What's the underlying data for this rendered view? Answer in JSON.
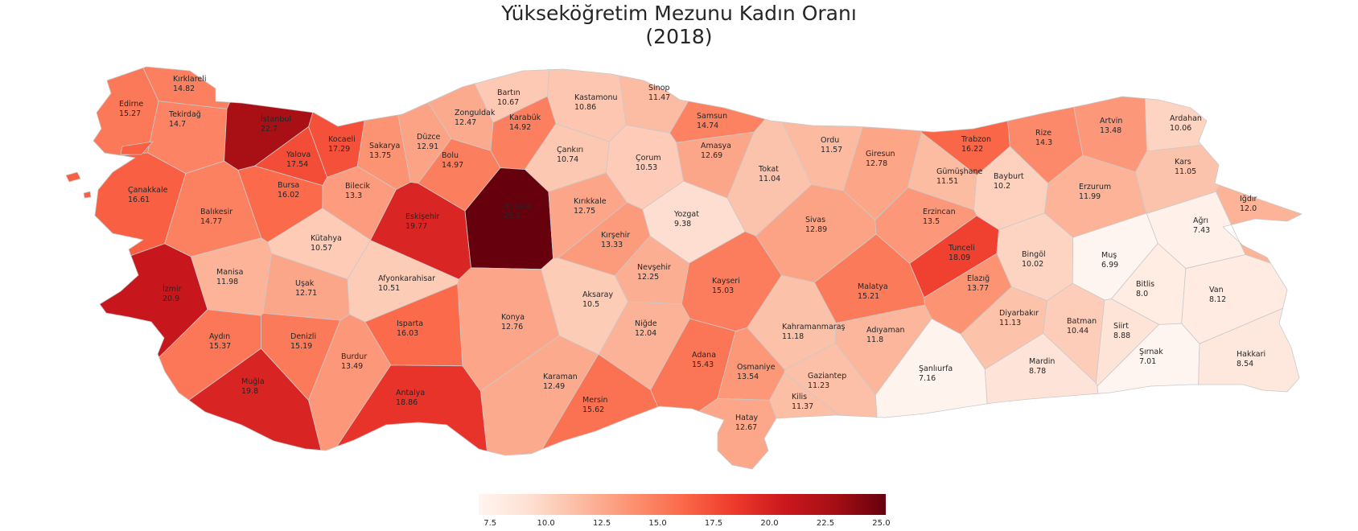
{
  "title": [
    "Yükseköğretim Mezunu Kadın Oranı",
    "(2018)"
  ],
  "colormap": {
    "name": "Reds",
    "min": 6.99,
    "max": 25.2,
    "stops": [
      "#fff5f0",
      "#fee0d2",
      "#fcbba1",
      "#fc9272",
      "#fb6a4a",
      "#ef3b2c",
      "#cb181d",
      "#a50f15",
      "#67000d"
    ]
  },
  "colorbar": {
    "ticks": [
      "7.5",
      "10.0",
      "12.5",
      "15.0",
      "17.5",
      "20.0",
      "22.5",
      "25.0"
    ]
  },
  "provinces": [
    {
      "name": "Kırklareli",
      "value": "14.82"
    },
    {
      "name": "Edirne",
      "value": "15.27"
    },
    {
      "name": "Tekirdağ",
      "value": "14.7"
    },
    {
      "name": "İstanbul",
      "value": "22.7"
    },
    {
      "name": "Kocaeli",
      "value": "17.29"
    },
    {
      "name": "Yalova",
      "value": "17.54"
    },
    {
      "name": "Sakarya",
      "value": "13.75"
    },
    {
      "name": "Düzce",
      "value": "12.91"
    },
    {
      "name": "Bolu",
      "value": "14.97"
    },
    {
      "name": "Zonguldak",
      "value": "12.47"
    },
    {
      "name": "Bartın",
      "value": "10.67"
    },
    {
      "name": "Karabük",
      "value": "14.92"
    },
    {
      "name": "Kastamonu",
      "value": "10.86"
    },
    {
      "name": "Sinop",
      "value": "11.47"
    },
    {
      "name": "Samsun",
      "value": "14.74"
    },
    {
      "name": "Çankırı",
      "value": "10.74"
    },
    {
      "name": "Çorum",
      "value": "10.53"
    },
    {
      "name": "Amasya",
      "value": "12.69"
    },
    {
      "name": "Tokat",
      "value": "11.04"
    },
    {
      "name": "Ordu",
      "value": "11.57"
    },
    {
      "name": "Giresun",
      "value": "12.78"
    },
    {
      "name": "Trabzon",
      "value": "16.22"
    },
    {
      "name": "Rize",
      "value": "14.3"
    },
    {
      "name": "Artvin",
      "value": "13.48"
    },
    {
      "name": "Ardahan",
      "value": "10.06"
    },
    {
      "name": "Gümüşhane",
      "value": "11.51"
    },
    {
      "name": "Bayburt",
      "value": "10.2"
    },
    {
      "name": "Kars",
      "value": "11.05"
    },
    {
      "name": "Iğdır",
      "value": "12.0"
    },
    {
      "name": "Erzurum",
      "value": "11.99"
    },
    {
      "name": "Ağrı",
      "value": "7.43"
    },
    {
      "name": "Çanakkale",
      "value": "16.61"
    },
    {
      "name": "Balıkesir",
      "value": "14.77"
    },
    {
      "name": "Bursa",
      "value": "16.02"
    },
    {
      "name": "Bilecik",
      "value": "13.3"
    },
    {
      "name": "Eskişehir",
      "value": "19.77"
    },
    {
      "name": "Ankara",
      "value": "25.2"
    },
    {
      "name": "Kırıkkale",
      "value": "12.75"
    },
    {
      "name": "Yozgat",
      "value": "9.38"
    },
    {
      "name": "Sivas",
      "value": "12.89"
    },
    {
      "name": "Erzincan",
      "value": "13.5"
    },
    {
      "name": "Tunceli",
      "value": "18.09"
    },
    {
      "name": "Bingöl",
      "value": "10.02"
    },
    {
      "name": "Muş",
      "value": "6.99"
    },
    {
      "name": "Kütahya",
      "value": "10.57"
    },
    {
      "name": "Kırşehir",
      "value": "13.33"
    },
    {
      "name": "Nevşehir",
      "value": "12.25"
    },
    {
      "name": "Kayseri",
      "value": "15.03"
    },
    {
      "name": "Malatya",
      "value": "15.21"
    },
    {
      "name": "Elazığ",
      "value": "13.77"
    },
    {
      "name": "Bitlis",
      "value": "8.0"
    },
    {
      "name": "Van",
      "value": "8.12"
    },
    {
      "name": "İzmir",
      "value": "20.9"
    },
    {
      "name": "Manisa",
      "value": "11.98"
    },
    {
      "name": "Uşak",
      "value": "12.71"
    },
    {
      "name": "Afyonkarahisar",
      "value": "10.51"
    },
    {
      "name": "Aksaray",
      "value": "10.5"
    },
    {
      "name": "Konya",
      "value": "12.76"
    },
    {
      "name": "Niğde",
      "value": "12.04"
    },
    {
      "name": "Kahramanmaraş",
      "value": "11.18"
    },
    {
      "name": "Adıyaman",
      "value": "11.8"
    },
    {
      "name": "Diyarbakır",
      "value": "11.13"
    },
    {
      "name": "Batman",
      "value": "10.44"
    },
    {
      "name": "Siirt",
      "value": "8.88"
    },
    {
      "name": "Aydın",
      "value": "15.37"
    },
    {
      "name": "Denizli",
      "value": "15.19"
    },
    {
      "name": "Isparta",
      "value": "16.03"
    },
    {
      "name": "Burdur",
      "value": "13.49"
    },
    {
      "name": "Adana",
      "value": "15.43"
    },
    {
      "name": "Osmaniye",
      "value": "13.54"
    },
    {
      "name": "Gaziantep",
      "value": "11.23"
    },
    {
      "name": "Kilis",
      "value": "11.37"
    },
    {
      "name": "Şanlıurfa",
      "value": "7.16"
    },
    {
      "name": "Mardin",
      "value": "8.78"
    },
    {
      "name": "Şırnak",
      "value": "7.01"
    },
    {
      "name": "Hakkari",
      "value": "8.54"
    },
    {
      "name": "Muğla",
      "value": "19.8"
    },
    {
      "name": "Antalya",
      "value": "18.86"
    },
    {
      "name": "Karaman",
      "value": "12.49"
    },
    {
      "name": "Mersin",
      "value": "15.62"
    },
    {
      "name": "Hatay",
      "value": "12.67"
    }
  ]
}
